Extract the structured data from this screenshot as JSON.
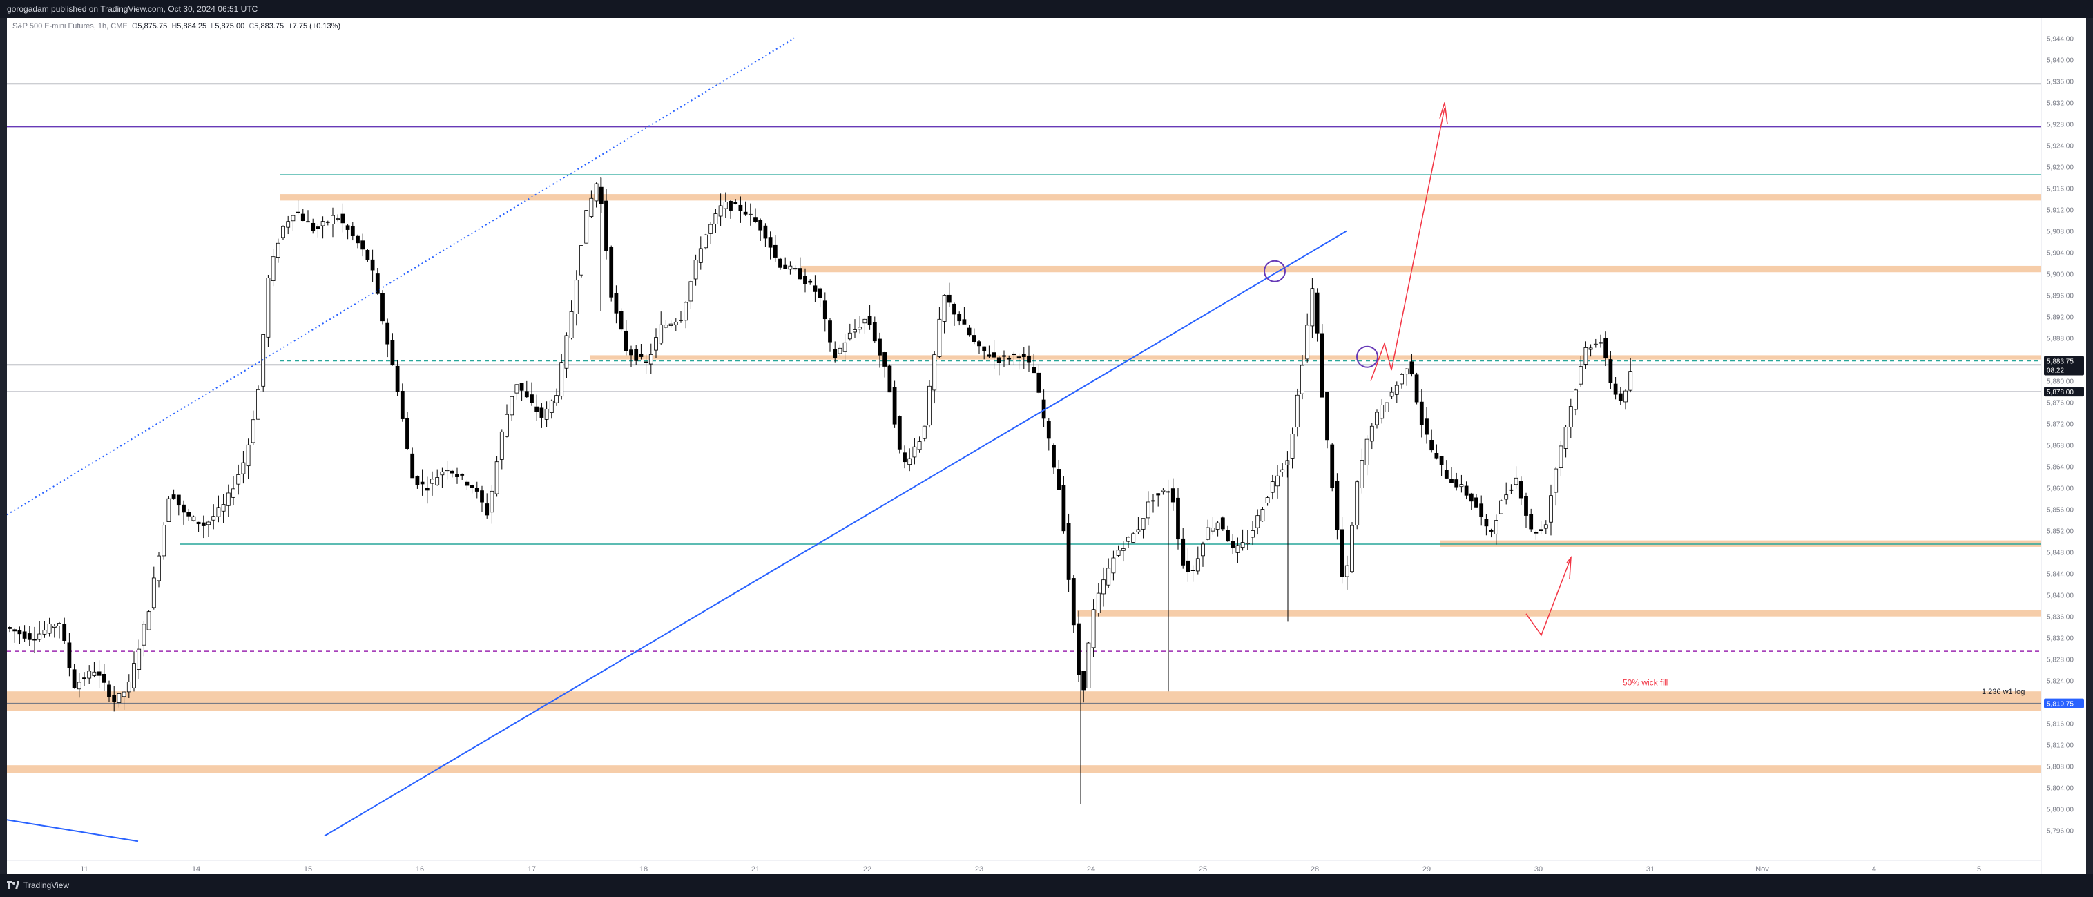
{
  "header": {
    "published_text": "gorogadam published on TradingView.com, Oct 30, 2024 06:51 UTC"
  },
  "legend": {
    "symbol": "S&P 500 E-mini Futures, 1h, CME",
    "open_label": "O",
    "open": "5,875.75",
    "high_label": "H",
    "high": "5,884.25",
    "low_label": "L",
    "low": "5,875.00",
    "close_label": "C",
    "close": "5,883.75",
    "change": "+7.75 (+0.13%)"
  },
  "footer": {
    "brand": "TradingView",
    "logo_icon": "tradingview-logo-icon"
  },
  "colors": {
    "up_candle": "#ffffff",
    "down_candle": "#000000",
    "candle_outline": "#000000",
    "zone": "#f5c8a0",
    "teal_line": "#26a69a",
    "purple_line": "#673ab7",
    "blue_trend": "#2962ff",
    "annotation_red": "#f23645",
    "price_tag_blue": "#2962ff",
    "price_tag_dark": "#131722"
  },
  "chart_data": {
    "type": "candlestick",
    "title": "S&P 500 E-mini Futures, 1h, CME",
    "ylim": [
      5793,
      5946
    ],
    "y_ticks": [
      "5,796.00",
      "5,800.00",
      "5,804.00",
      "5,808.00",
      "5,812.00",
      "5,816.00",
      "5,820.00",
      "5,824.00",
      "5,828.00",
      "5,832.00",
      "5,836.00",
      "5,840.00",
      "5,844.00",
      "5,848.00",
      "5,852.00",
      "5,856.00",
      "5,860.00",
      "5,864.00",
      "5,868.00",
      "5,872.00",
      "5,876.00",
      "5,880.00",
      "5,884.00",
      "5,888.00",
      "5,892.00",
      "5,896.00",
      "5,900.00",
      "5,904.00",
      "5,908.00",
      "5,912.00",
      "5,916.00",
      "5,920.00",
      "5,924.00",
      "5,928.00",
      "5,932.00",
      "5,936.00",
      "5,940.00",
      "5,944.00"
    ],
    "x_tick_labels": [
      "11",
      "14",
      "15",
      "16",
      "17",
      "18",
      "21",
      "22",
      "23",
      "24",
      "25",
      "28",
      "29",
      "30",
      "31",
      "Nov",
      "4",
      "5"
    ],
    "price_tags": [
      {
        "price": 5883.75,
        "text": "5,883.75",
        "sub": "08:22",
        "style": "dark"
      },
      {
        "price": 5878.0,
        "text": "5,878.00",
        "style": "dark"
      },
      {
        "price": 5819.75,
        "text": "5,819.75",
        "style": "blue"
      }
    ],
    "horizontal_lines": [
      {
        "price": 5935.5,
        "color": "#787b86",
        "style": "solid"
      },
      {
        "price": 5927.5,
        "color": "#673ab7",
        "style": "solid"
      },
      {
        "price": 5918.5,
        "color": "#26a69a",
        "style": "solid",
        "from": "14-end"
      },
      {
        "price": 5849.5,
        "color": "#26a69a",
        "style": "solid",
        "from": "13"
      },
      {
        "price": 5829.5,
        "color": "#9c27b0",
        "style": "dashed"
      },
      {
        "price": 5883.75,
        "color": "#26a69a",
        "style": "dashed",
        "from": "14-end"
      },
      {
        "price": 5883.0,
        "color": "#787b86",
        "style": "solid"
      },
      {
        "price": 5878.0,
        "color": "#b2b5be",
        "style": "solid"
      },
      {
        "price": 5819.75,
        "color": "#787b86",
        "style": "solid"
      }
    ],
    "zones": [
      {
        "from": 5913.7,
        "to": 5914.9,
        "start": "14-end"
      },
      {
        "from": 5900.3,
        "to": 5901.5,
        "start": "21-end"
      },
      {
        "from": 5884.0,
        "to": 5884.8,
        "start": "17-end"
      },
      {
        "from": 5849.0,
        "to": 5850.2,
        "start": "28-end"
      },
      {
        "from": 5836.0,
        "to": 5837.2,
        "start": "23-end"
      },
      {
        "from": 5818.4,
        "to": 5822.0,
        "start": "chart-start"
      },
      {
        "from": 5806.7,
        "to": 5808.2,
        "start": "chart-start"
      }
    ],
    "annotations": [
      {
        "text": "50% wick fill",
        "price": 5822.6
      },
      {
        "text": "1.236 w1 log",
        "price": 5821.0
      }
    ],
    "candles_note": "OHLC synthesized from the visible price path of the hourly series"
  }
}
